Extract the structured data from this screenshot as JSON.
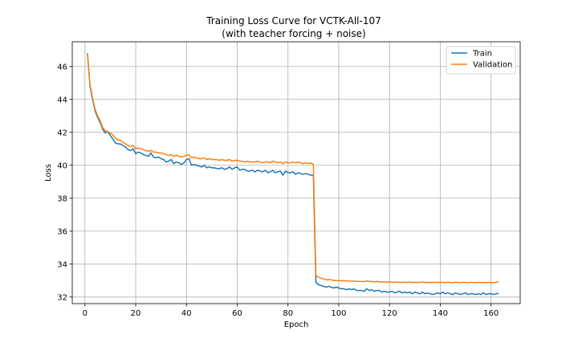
{
  "chart_data": {
    "type": "line",
    "title_line1": "Training Loss Curve for VCTK-All-107",
    "title_line2": "(with teacher forcing + noise)",
    "xlabel": "Epoch",
    "ylabel": "Loss",
    "xlim": [
      -5,
      171.5
    ],
    "ylim": [
      31.6,
      47.5
    ],
    "xticks": [
      0,
      20,
      40,
      60,
      80,
      100,
      120,
      140,
      160
    ],
    "yticks": [
      32,
      34,
      36,
      38,
      40,
      42,
      44,
      46
    ],
    "grid": true,
    "legend_position": "top-right",
    "series": [
      {
        "name": "Train",
        "color": "#1f77b4",
        "points": [
          [
            1,
            46.8
          ],
          [
            2,
            44.8
          ],
          [
            3,
            44.0
          ],
          [
            4,
            43.3
          ],
          [
            5,
            42.9
          ],
          [
            6,
            42.6
          ],
          [
            7,
            42.2
          ],
          [
            8,
            41.95
          ],
          [
            9,
            42.05
          ],
          [
            10,
            41.8
          ],
          [
            11,
            41.6
          ],
          [
            12,
            41.35
          ],
          [
            13,
            41.3
          ],
          [
            14,
            41.3
          ],
          [
            15,
            41.2
          ],
          [
            16,
            41.1
          ],
          [
            17,
            40.95
          ],
          [
            18,
            40.9
          ],
          [
            19,
            41.0
          ],
          [
            20,
            40.7
          ],
          [
            21,
            40.8
          ],
          [
            22,
            40.75
          ],
          [
            23,
            40.65
          ],
          [
            24,
            40.6
          ],
          [
            25,
            40.55
          ],
          [
            26,
            40.75
          ],
          [
            27,
            40.5
          ],
          [
            28,
            40.45
          ],
          [
            29,
            40.5
          ],
          [
            30,
            40.4
          ],
          [
            31,
            40.35
          ],
          [
            32,
            40.2
          ],
          [
            33,
            40.25
          ],
          [
            34,
            40.35
          ],
          [
            35,
            40.1
          ],
          [
            36,
            40.2
          ],
          [
            37,
            40.15
          ],
          [
            38,
            40.05
          ],
          [
            39,
            40.15
          ],
          [
            40,
            40.35
          ],
          [
            41,
            40.4
          ],
          [
            42,
            40.0
          ],
          [
            43,
            40.05
          ],
          [
            44,
            40.0
          ],
          [
            45,
            39.95
          ],
          [
            46,
            39.9
          ],
          [
            47,
            40.0
          ],
          [
            48,
            39.85
          ],
          [
            49,
            39.9
          ],
          [
            50,
            39.85
          ],
          [
            51,
            39.85
          ],
          [
            52,
            39.8
          ],
          [
            53,
            39.8
          ],
          [
            54,
            39.85
          ],
          [
            55,
            39.75
          ],
          [
            56,
            39.8
          ],
          [
            57,
            39.9
          ],
          [
            58,
            39.75
          ],
          [
            59,
            39.85
          ],
          [
            60,
            39.9
          ],
          [
            61,
            39.7
          ],
          [
            62,
            39.75
          ],
          [
            63,
            39.75
          ],
          [
            64,
            39.65
          ],
          [
            65,
            39.65
          ],
          [
            66,
            39.7
          ],
          [
            67,
            39.6
          ],
          [
            68,
            39.7
          ],
          [
            69,
            39.65
          ],
          [
            70,
            39.6
          ],
          [
            71,
            39.7
          ],
          [
            72,
            39.55
          ],
          [
            73,
            39.6
          ],
          [
            74,
            39.7
          ],
          [
            75,
            39.55
          ],
          [
            76,
            39.6
          ],
          [
            77,
            39.65
          ],
          [
            78,
            39.4
          ],
          [
            79,
            39.65
          ],
          [
            80,
            39.55
          ],
          [
            81,
            39.55
          ],
          [
            82,
            39.6
          ],
          [
            83,
            39.45
          ],
          [
            84,
            39.55
          ],
          [
            85,
            39.5
          ],
          [
            86,
            39.45
          ],
          [
            87,
            39.5
          ],
          [
            88,
            39.45
          ],
          [
            89,
            39.4
          ],
          [
            90,
            39.4
          ],
          [
            91,
            32.9
          ],
          [
            92,
            32.75
          ],
          [
            93,
            32.7
          ],
          [
            94,
            32.65
          ],
          [
            95,
            32.6
          ],
          [
            96,
            32.65
          ],
          [
            97,
            32.6
          ],
          [
            98,
            32.55
          ],
          [
            99,
            32.6
          ],
          [
            100,
            32.55
          ],
          [
            101,
            32.5
          ],
          [
            102,
            32.5
          ],
          [
            103,
            32.45
          ],
          [
            104,
            32.5
          ],
          [
            105,
            32.45
          ],
          [
            106,
            32.5
          ],
          [
            107,
            32.4
          ],
          [
            108,
            32.4
          ],
          [
            109,
            32.4
          ],
          [
            110,
            32.35
          ],
          [
            111,
            32.5
          ],
          [
            112,
            32.4
          ],
          [
            113,
            32.45
          ],
          [
            114,
            32.35
          ],
          [
            115,
            32.4
          ],
          [
            116,
            32.4
          ],
          [
            117,
            32.3
          ],
          [
            118,
            32.35
          ],
          [
            119,
            32.3
          ],
          [
            120,
            32.3
          ],
          [
            121,
            32.35
          ],
          [
            122,
            32.25
          ],
          [
            123,
            32.3
          ],
          [
            124,
            32.35
          ],
          [
            125,
            32.25
          ],
          [
            126,
            32.3
          ],
          [
            127,
            32.25
          ],
          [
            128,
            32.3
          ],
          [
            129,
            32.2
          ],
          [
            130,
            32.3
          ],
          [
            131,
            32.25
          ],
          [
            132,
            32.2
          ],
          [
            133,
            32.3
          ],
          [
            134,
            32.2
          ],
          [
            135,
            32.25
          ],
          [
            136,
            32.2
          ],
          [
            137,
            32.15
          ],
          [
            138,
            32.2
          ],
          [
            139,
            32.25
          ],
          [
            140,
            32.2
          ],
          [
            141,
            32.3
          ],
          [
            142,
            32.2
          ],
          [
            143,
            32.25
          ],
          [
            144,
            32.2
          ],
          [
            145,
            32.15
          ],
          [
            146,
            32.25
          ],
          [
            147,
            32.2
          ],
          [
            148,
            32.15
          ],
          [
            149,
            32.2
          ],
          [
            150,
            32.25
          ],
          [
            151,
            32.15
          ],
          [
            152,
            32.2
          ],
          [
            153,
            32.2
          ],
          [
            154,
            32.15
          ],
          [
            155,
            32.2
          ],
          [
            156,
            32.15
          ],
          [
            157,
            32.25
          ],
          [
            158,
            32.15
          ],
          [
            159,
            32.2
          ],
          [
            160,
            32.2
          ],
          [
            161,
            32.15
          ],
          [
            162,
            32.2
          ],
          [
            163,
            32.22
          ]
        ]
      },
      {
        "name": "Validation",
        "color": "#ff7f0e",
        "points": [
          [
            1,
            46.75
          ],
          [
            2,
            44.9
          ],
          [
            3,
            44.1
          ],
          [
            4,
            43.4
          ],
          [
            5,
            43.0
          ],
          [
            6,
            42.7
          ],
          [
            7,
            42.3
          ],
          [
            8,
            42.1
          ],
          [
            9,
            42.05
          ],
          [
            10,
            41.95
          ],
          [
            11,
            41.85
          ],
          [
            12,
            41.65
          ],
          [
            13,
            41.55
          ],
          [
            14,
            41.5
          ],
          [
            15,
            41.4
          ],
          [
            16,
            41.3
          ],
          [
            17,
            41.2
          ],
          [
            18,
            41.15
          ],
          [
            19,
            41.2
          ],
          [
            20,
            41.0
          ],
          [
            21,
            41.05
          ],
          [
            22,
            41.0
          ],
          [
            23,
            40.95
          ],
          [
            24,
            40.9
          ],
          [
            25,
            40.85
          ],
          [
            26,
            40.9
          ],
          [
            27,
            40.8
          ],
          [
            28,
            40.8
          ],
          [
            29,
            40.75
          ],
          [
            30,
            40.75
          ],
          [
            31,
            40.7
          ],
          [
            32,
            40.65
          ],
          [
            33,
            40.6
          ],
          [
            34,
            40.65
          ],
          [
            35,
            40.55
          ],
          [
            36,
            40.6
          ],
          [
            37,
            40.55
          ],
          [
            38,
            40.5
          ],
          [
            39,
            40.55
          ],
          [
            40,
            40.6
          ],
          [
            41,
            40.65
          ],
          [
            42,
            40.45
          ],
          [
            43,
            40.5
          ],
          [
            44,
            40.45
          ],
          [
            45,
            40.4
          ],
          [
            46,
            40.4
          ],
          [
            47,
            40.45
          ],
          [
            48,
            40.35
          ],
          [
            49,
            40.4
          ],
          [
            50,
            40.35
          ],
          [
            51,
            40.35
          ],
          [
            52,
            40.35
          ],
          [
            53,
            40.3
          ],
          [
            54,
            40.35
          ],
          [
            55,
            40.3
          ],
          [
            56,
            40.3
          ],
          [
            57,
            40.35
          ],
          [
            58,
            40.25
          ],
          [
            59,
            40.3
          ],
          [
            60,
            40.3
          ],
          [
            61,
            40.25
          ],
          [
            62,
            40.25
          ],
          [
            63,
            40.2
          ],
          [
            64,
            40.25
          ],
          [
            65,
            40.2
          ],
          [
            66,
            40.2
          ],
          [
            67,
            40.2
          ],
          [
            68,
            40.25
          ],
          [
            69,
            40.2
          ],
          [
            70,
            40.15
          ],
          [
            71,
            40.2
          ],
          [
            72,
            40.2
          ],
          [
            73,
            40.15
          ],
          [
            74,
            40.25
          ],
          [
            75,
            40.2
          ],
          [
            76,
            40.15
          ],
          [
            77,
            40.2
          ],
          [
            78,
            40.1
          ],
          [
            79,
            40.2
          ],
          [
            80,
            40.15
          ],
          [
            81,
            40.15
          ],
          [
            82,
            40.2
          ],
          [
            83,
            40.15
          ],
          [
            84,
            40.2
          ],
          [
            85,
            40.15
          ],
          [
            86,
            40.1
          ],
          [
            87,
            40.15
          ],
          [
            88,
            40.1
          ],
          [
            89,
            40.15
          ],
          [
            90,
            40.05
          ],
          [
            91,
            33.3
          ],
          [
            92,
            33.2
          ],
          [
            93,
            33.15
          ],
          [
            94,
            33.1
          ],
          [
            95,
            33.05
          ],
          [
            96,
            33.05
          ],
          [
            97,
            33.05
          ],
          [
            98,
            33.0
          ],
          [
            99,
            33.0
          ],
          [
            100,
            33.0
          ],
          [
            101,
            32.98
          ],
          [
            102,
            33.0
          ],
          [
            103,
            32.98
          ],
          [
            104,
            32.98
          ],
          [
            105,
            32.95
          ],
          [
            106,
            32.98
          ],
          [
            107,
            32.95
          ],
          [
            108,
            32.95
          ],
          [
            109,
            32.95
          ],
          [
            110,
            32.93
          ],
          [
            111,
            32.98
          ],
          [
            112,
            32.95
          ],
          [
            113,
            32.95
          ],
          [
            114,
            32.93
          ],
          [
            115,
            32.95
          ],
          [
            116,
            32.93
          ],
          [
            117,
            32.9
          ],
          [
            118,
            32.93
          ],
          [
            119,
            32.9
          ],
          [
            120,
            32.93
          ],
          [
            121,
            32.9
          ],
          [
            122,
            32.9
          ],
          [
            123,
            32.92
          ],
          [
            124,
            32.88
          ],
          [
            125,
            32.9
          ],
          [
            126,
            32.9
          ],
          [
            127,
            32.88
          ],
          [
            128,
            32.92
          ],
          [
            129,
            32.88
          ],
          [
            130,
            32.9
          ],
          [
            131,
            32.88
          ],
          [
            132,
            32.9
          ],
          [
            133,
            32.92
          ],
          [
            134,
            32.88
          ],
          [
            135,
            32.9
          ],
          [
            136,
            32.87
          ],
          [
            137,
            32.9
          ],
          [
            138,
            32.88
          ],
          [
            139,
            32.9
          ],
          [
            140,
            32.88
          ],
          [
            141,
            32.9
          ],
          [
            142,
            32.87
          ],
          [
            143,
            32.9
          ],
          [
            144,
            32.88
          ],
          [
            145,
            32.87
          ],
          [
            146,
            32.9
          ],
          [
            147,
            32.88
          ],
          [
            148,
            32.87
          ],
          [
            149,
            32.9
          ],
          [
            150,
            32.88
          ],
          [
            151,
            32.87
          ],
          [
            152,
            32.9
          ],
          [
            153,
            32.88
          ],
          [
            154,
            32.87
          ],
          [
            155,
            32.9
          ],
          [
            156,
            32.87
          ],
          [
            157,
            32.88
          ],
          [
            158,
            32.87
          ],
          [
            159,
            32.9
          ],
          [
            160,
            32.88
          ],
          [
            161,
            32.87
          ],
          [
            162,
            32.9
          ],
          [
            163,
            32.93
          ]
        ]
      }
    ]
  }
}
